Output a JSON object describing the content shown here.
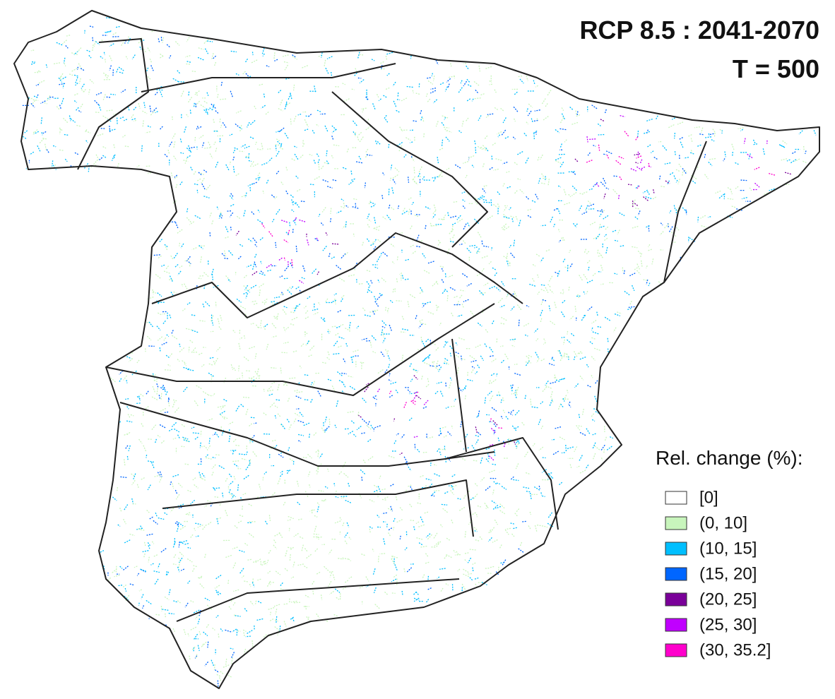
{
  "title": {
    "line1": "RCP 8.5 : 2041-2070",
    "line2": "T = 500"
  },
  "legend": {
    "title": "Rel. change (%):",
    "items": [
      {
        "label": "[0]",
        "color": "#ffffff"
      },
      {
        "label": "(0, 10]",
        "color": "#c8f5bc"
      },
      {
        "label": "(10, 15]",
        "color": "#00bfff"
      },
      {
        "label": "(15, 20]",
        "color": "#0066ff"
      },
      {
        "label": "(20, 25]",
        "color": "#7a0099"
      },
      {
        "label": "(25, 30]",
        "color": "#c000ff"
      },
      {
        "label": "(30, 35.2]",
        "color": "#ff00cc"
      }
    ]
  }
}
